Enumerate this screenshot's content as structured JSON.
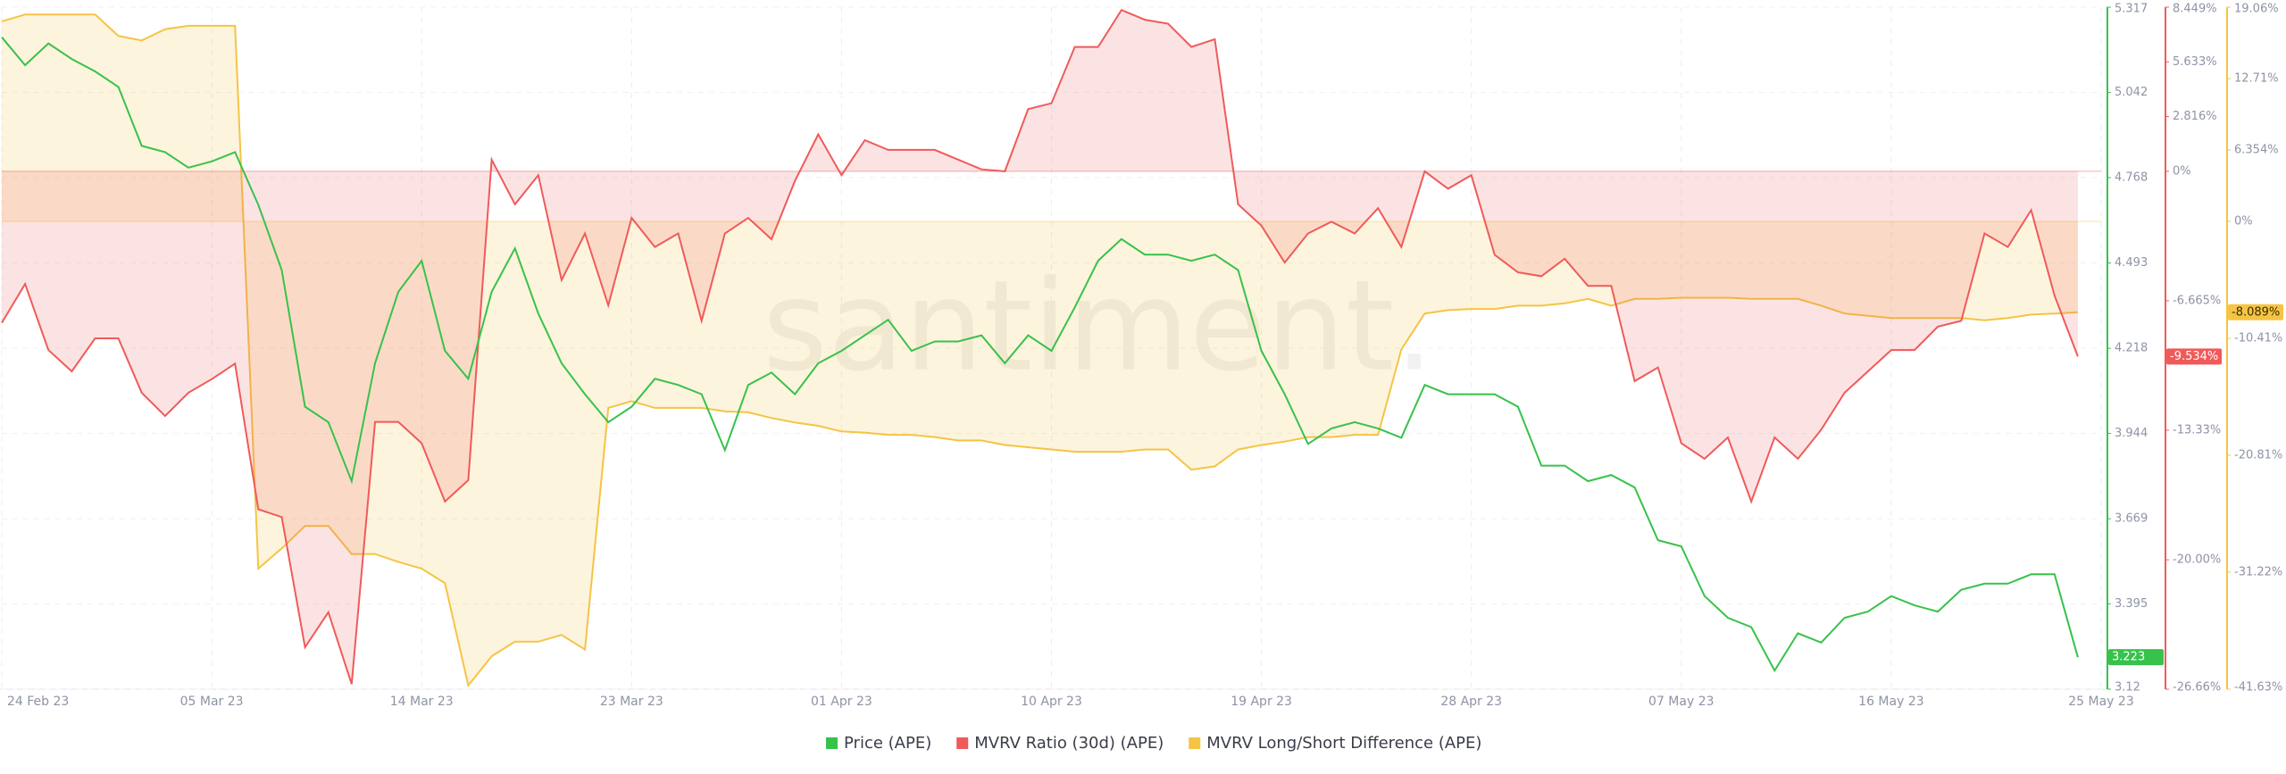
{
  "chart_data": {
    "type": "line",
    "watermark": "santiment.",
    "x": [
      "24 Feb 23",
      "25 Feb 23",
      "26 Feb 23",
      "27 Feb 23",
      "28 Feb 23",
      "01 Mar 23",
      "02 Mar 23",
      "03 Mar 23",
      "04 Mar 23",
      "05 Mar 23",
      "06 Mar 23",
      "07 Mar 23",
      "08 Mar 23",
      "09 Mar 23",
      "10 Mar 23",
      "11 Mar 23",
      "12 Mar 23",
      "13 Mar 23",
      "14 Mar 23",
      "15 Mar 23",
      "16 Mar 23",
      "17 Mar 23",
      "18 Mar 23",
      "19 Mar 23",
      "20 Mar 23",
      "21 Mar 23",
      "22 Mar 23",
      "23 Mar 23",
      "24 Mar 23",
      "25 Mar 23",
      "26 Mar 23",
      "27 Mar 23",
      "28 Mar 23",
      "29 Mar 23",
      "30 Mar 23",
      "31 Mar 23",
      "01 Apr 23",
      "02 Apr 23",
      "03 Apr 23",
      "04 Apr 23",
      "05 Apr 23",
      "06 Apr 23",
      "07 Apr 23",
      "08 Apr 23",
      "09 Apr 23",
      "10 Apr 23",
      "11 Apr 23",
      "12 Apr 23",
      "13 Apr 23",
      "14 Apr 23",
      "15 Apr 23",
      "16 Apr 23",
      "17 Apr 23",
      "18 Apr 23",
      "19 Apr 23",
      "20 Apr 23",
      "21 Apr 23",
      "22 Apr 23",
      "23 Apr 23",
      "24 Apr 23",
      "25 Apr 23",
      "26 Apr 23",
      "27 Apr 23",
      "28 Apr 23",
      "29 Apr 23",
      "30 Apr 23",
      "01 May 23",
      "02 May 23",
      "03 May 23",
      "04 May 23",
      "05 May 23",
      "06 May 23",
      "07 May 23",
      "08 May 23",
      "09 May 23",
      "10 May 23",
      "11 May 23",
      "12 May 23",
      "13 May 23",
      "14 May 23",
      "15 May 23",
      "16 May 23",
      "17 May 23",
      "18 May 23",
      "19 May 23",
      "20 May 23",
      "21 May 23",
      "22 May 23",
      "23 May 23",
      "24 May 23",
      "25 May 23"
    ],
    "xticks": [
      "24 Feb 23",
      "05 Mar 23",
      "14 Mar 23",
      "23 Mar 23",
      "01 Apr 23",
      "10 Apr 23",
      "19 Apr 23",
      "28 Apr 23",
      "07 May 23",
      "16 May 23",
      "25 May 23"
    ],
    "grid": true,
    "ylim": [
      3.12,
      5.317
    ],
    "yticks": [
      3.12,
      3.395,
      3.669,
      3.944,
      4.218,
      4.493,
      4.768,
      5.042,
      5.317
    ],
    "y2lim": [
      -26.66,
      8.449
    ],
    "y2ticks": [
      {
        "value": -26.66,
        "label": "-26.66%"
      },
      {
        "value": -20,
        "label": "-20.00%"
      },
      {
        "value": -13.33,
        "label": "-13.33%"
      },
      {
        "value": -6.665,
        "label": "-6.665%"
      },
      {
        "value": 0,
        "label": "0%"
      },
      {
        "value": 2.816,
        "label": "2.816%"
      },
      {
        "value": 5.633,
        "label": "5.633%"
      },
      {
        "value": 8.449,
        "label": "8.449%"
      }
    ],
    "y3lim": [
      -41.63,
      19.06
    ],
    "y3ticks": [
      {
        "value": -41.63,
        "label": "-41.63%"
      },
      {
        "value": -31.22,
        "label": "-31.22%"
      },
      {
        "value": -20.81,
        "label": "-20.81%"
      },
      {
        "value": -10.41,
        "label": "-10.41%"
      },
      {
        "value": 0,
        "label": "0%"
      },
      {
        "value": 6.354,
        "label": "6.354%"
      },
      {
        "value": 12.71,
        "label": "12.71%"
      },
      {
        "value": 19.06,
        "label": "19.06%"
      }
    ],
    "series": [
      {
        "name": "Price (APE)",
        "color": "#37c24b",
        "axis": "y",
        "current": 3.223,
        "values": [
          5.22,
          5.13,
          5.2,
          5.15,
          5.11,
          5.06,
          4.87,
          4.85,
          4.8,
          4.82,
          4.85,
          4.68,
          4.47,
          4.03,
          3.98,
          3.79,
          4.17,
          4.4,
          4.5,
          4.21,
          4.12,
          4.4,
          4.54,
          4.33,
          4.17,
          4.07,
          3.98,
          4.03,
          4.12,
          4.1,
          4.07,
          3.89,
          4.1,
          4.14,
          4.07,
          4.17,
          4.21,
          4.26,
          4.31,
          4.21,
          4.24,
          4.24,
          4.26,
          4.17,
          4.26,
          4.21,
          4.35,
          4.5,
          4.57,
          4.52,
          4.52,
          4.5,
          4.52,
          4.47,
          4.21,
          4.07,
          3.91,
          3.96,
          3.98,
          3.96,
          3.93,
          4.1,
          4.07,
          4.07,
          4.07,
          4.03,
          3.84,
          3.84,
          3.79,
          3.81,
          3.77,
          3.6,
          3.58,
          3.42,
          3.35,
          3.32,
          3.18,
          3.3,
          3.27,
          3.35,
          3.37,
          3.42,
          3.39,
          3.37,
          3.44,
          3.46,
          3.46,
          3.49,
          3.49,
          3.223,
          null
        ]
      },
      {
        "name": "MVRV Ratio (30d) (APE)",
        "color": "#f05a5a",
        "axis": "y2",
        "current": {
          "value": -9.534,
          "label": "-9.534%"
        },
        "values": [
          -7.8,
          -5.8,
          -9.2,
          -10.3,
          -8.6,
          -8.6,
          -11.4,
          -12.6,
          -11.4,
          -10.7,
          -9.9,
          -17.4,
          -17.8,
          -24.5,
          -22.7,
          -26.4,
          -12.9,
          -12.9,
          -14,
          -17,
          -15.9,
          0.6,
          -1.7,
          -0.2,
          -5.6,
          -3.2,
          -6.9,
          -2.4,
          -3.9,
          -3.2,
          -7.7,
          -3.2,
          -2.4,
          -3.5,
          -0.5,
          1.9,
          -0.2,
          1.6,
          1.1,
          1.1,
          1.1,
          0.6,
          0.1,
          0,
          3.2,
          3.5,
          6.4,
          6.4,
          8.3,
          7.8,
          7.6,
          6.4,
          6.8,
          -1.7,
          -2.8,
          -4.7,
          -3.2,
          -2.6,
          -3.2,
          -1.9,
          -3.9,
          0,
          -0.9,
          -0.2,
          -4.3,
          -5.2,
          -5.4,
          -4.5,
          -5.9,
          -5.9,
          -10.8,
          -10.1,
          -14,
          -14.8,
          -13.7,
          -17,
          -13.7,
          -14.8,
          -13.3,
          -11.4,
          -10.3,
          -9.2,
          -9.2,
          -8,
          -7.7,
          -3.2,
          -3.9,
          -2,
          -6.4,
          -9.534,
          null
        ]
      },
      {
        "name": "MVRV Long/Short Difference (APE)",
        "color": "#f5c444",
        "axis": "y3",
        "current": {
          "value": -8.089,
          "label": "-8.089%"
        },
        "values": [
          17.8,
          18.4,
          18.4,
          18.4,
          18.4,
          16.5,
          16.1,
          17.1,
          17.4,
          17.4,
          17.4,
          -30.9,
          -29.1,
          -27.1,
          -27.1,
          -29.6,
          -29.6,
          -30.3,
          -30.9,
          -32.2,
          -41.3,
          -38.7,
          -37.4,
          -37.4,
          -36.8,
          -38.1,
          -16.6,
          -16,
          -16.6,
          -16.6,
          -16.6,
          -16.9,
          -17,
          -17.5,
          -17.9,
          -18.2,
          -18.7,
          -18.8,
          -19,
          -19,
          -19.2,
          -19.5,
          -19.5,
          -19.9,
          -20.1,
          -20.3,
          -20.5,
          -20.5,
          -20.5,
          -20.3,
          -20.3,
          -22.1,
          -21.8,
          -20.3,
          -19.9,
          -19.6,
          -19.2,
          -19.2,
          -19,
          -19,
          -11.4,
          -8.2,
          -7.9,
          -7.8,
          -7.8,
          -7.5,
          -7.5,
          -7.3,
          -6.9,
          -7.5,
          -6.9,
          -6.9,
          -6.8,
          -6.8,
          -6.8,
          -6.9,
          -6.9,
          -6.9,
          -7.5,
          -8.2,
          -8.4,
          -8.6,
          -8.6,
          -8.6,
          -8.6,
          -8.8,
          -8.6,
          -8.3,
          -8.2,
          -8.089,
          null
        ]
      }
    ]
  }
}
